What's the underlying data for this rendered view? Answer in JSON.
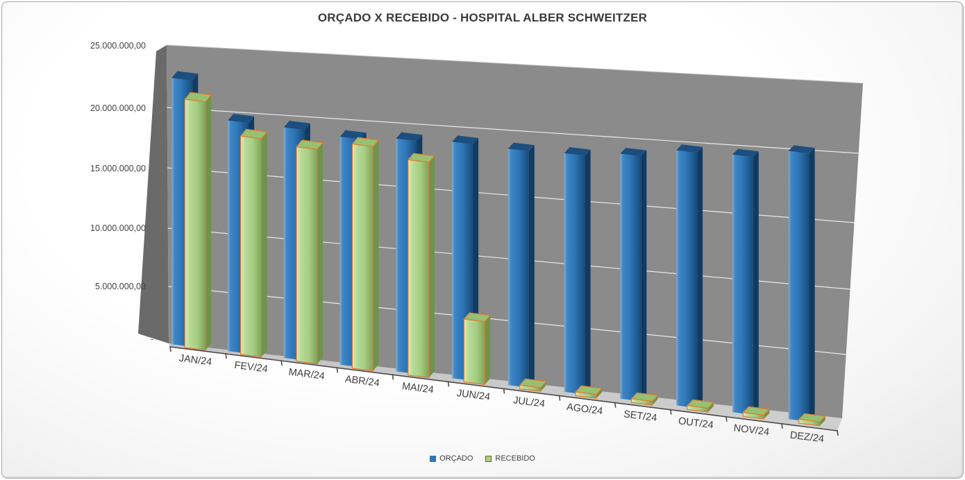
{
  "window": {
    "border_color": "#a6a6a6",
    "background_color": "#f7f7f7"
  },
  "chart_data": {
    "type": "bar",
    "variant": "3d-clustered-column",
    "title": "ORÇADO X RECEBIDO - HOSPITAL ALBER SCHWEITZER",
    "categories": [
      "JAN/24",
      "FEV/24",
      "MAR/24",
      "ABR/24",
      "MAI/24",
      "JUN/24",
      "JUL/24",
      "AGO/24",
      "SET/24",
      "OUT/24",
      "NOV/24",
      "DEZ/24"
    ],
    "series": [
      {
        "name": "ORÇADO",
        "color": "#2E75B6",
        "color_dark": "#1F4E79",
        "values": [
          22300000,
          19100000,
          18900000,
          18500000,
          18700000,
          18800000,
          18600000,
          18600000,
          18900000,
          19500000,
          19500000,
          20100000
        ]
      },
      {
        "name": "RECEBIDO",
        "color": "#A9D18E",
        "color_dark": "#86A65C",
        "border_color": "#E2792B",
        "values": [
          20800000,
          18100000,
          17600000,
          18200000,
          17300000,
          5000000,
          300000,
          300000,
          300000,
          300000,
          300000,
          300000
        ]
      }
    ],
    "y_axis": {
      "min": 0,
      "max": 25000000,
      "tick_step": 5000000,
      "tick_labels": [
        "-",
        "5.000.000,00",
        "10.000.000,00",
        "15.000.000,00",
        "20.000.000,00",
        "25.000.000,00"
      ]
    },
    "legend": {
      "position": "bottom",
      "entries": [
        "ORÇADO",
        "RECEBIDO"
      ]
    },
    "grid": true,
    "wall_color": "#8B8B8B",
    "side_wall_color": "#6A6A6A",
    "floor_color": "#C8C8C8",
    "gridline_color": "#F5F5F5",
    "axis_line_color": "#4a4a4a",
    "label_color": "#3d3d3d",
    "title_color": "#3a3a3a"
  }
}
